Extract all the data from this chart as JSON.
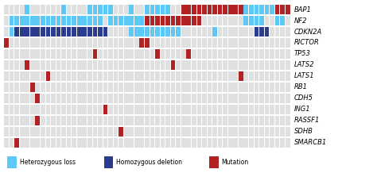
{
  "genes": [
    "BAP1",
    "NF2",
    "CDKN2A",
    "RICTOR",
    "TP53",
    "LATS2",
    "LATS1",
    "RB1",
    "CDH5",
    "ING1",
    "RASSF1",
    "SDHB",
    "SMARCB1"
  ],
  "n_samples": 55,
  "colors": {
    "het_loss": "#5BC8F5",
    "hom_del": "#2A3A8C",
    "mutation": "#B22222",
    "background": "#E0E0E0",
    "fig_bg": "#FFFFFF"
  },
  "sample_data": {
    "BAP1": {
      "het_loss": [
        4,
        11,
        16,
        17,
        18,
        19,
        20,
        24,
        27,
        28,
        29,
        30,
        31,
        35,
        36,
        37,
        38,
        39,
        40,
        41,
        42,
        43,
        44,
        45,
        46,
        47,
        48,
        49,
        50,
        51
      ],
      "hom_del": [],
      "mutation": [
        34,
        35,
        36,
        37,
        38,
        39,
        40,
        41,
        42,
        43,
        44,
        45,
        52,
        53,
        54
      ]
    },
    "NF2": {
      "het_loss": [
        1,
        2,
        3,
        4,
        5,
        6,
        7,
        8,
        9,
        10,
        11,
        12,
        13,
        14,
        15,
        16,
        17,
        18,
        20,
        21,
        22,
        23,
        24,
        25,
        26,
        27,
        46,
        47,
        48,
        49,
        52,
        53
      ],
      "hom_del": [],
      "mutation": [
        27,
        28,
        29,
        30,
        31,
        32,
        33,
        34,
        35,
        36,
        37
      ]
    },
    "CDKN2A": {
      "het_loss": [
        1,
        7,
        24,
        25,
        26,
        27,
        28,
        29,
        30,
        31,
        32,
        33,
        40
      ],
      "hom_del": [
        2,
        3,
        4,
        5,
        6,
        7,
        8,
        9,
        10,
        11,
        12,
        13,
        14,
        15,
        16,
        17,
        18,
        19,
        48,
        49,
        50
      ],
      "mutation": []
    },
    "RICTOR": {
      "het_loss": [],
      "hom_del": [],
      "mutation": [
        0,
        26,
        27
      ]
    },
    "TP53": {
      "het_loss": [],
      "hom_del": [],
      "mutation": [
        17,
        29,
        35
      ]
    },
    "LATS2": {
      "het_loss": [],
      "hom_del": [],
      "mutation": [
        4,
        32
      ]
    },
    "LATS1": {
      "het_loss": [],
      "hom_del": [],
      "mutation": [
        8,
        45
      ]
    },
    "RB1": {
      "het_loss": [],
      "hom_del": [],
      "mutation": [
        5
      ]
    },
    "CDH5": {
      "het_loss": [],
      "hom_del": [],
      "mutation": [
        6
      ]
    },
    "ING1": {
      "het_loss": [],
      "hom_del": [],
      "mutation": [
        19
      ]
    },
    "RASSF1": {
      "het_loss": [],
      "hom_del": [],
      "mutation": [
        6
      ]
    },
    "SDHB": {
      "het_loss": [],
      "hom_del": [],
      "mutation": [
        22
      ]
    },
    "SMARCB1": {
      "het_loss": [],
      "hom_del": [],
      "mutation": [
        2
      ]
    }
  },
  "legend": {
    "het_loss": "Heterozygous loss",
    "hom_del": "Homozygous deletion",
    "mutation": "Mutation"
  }
}
